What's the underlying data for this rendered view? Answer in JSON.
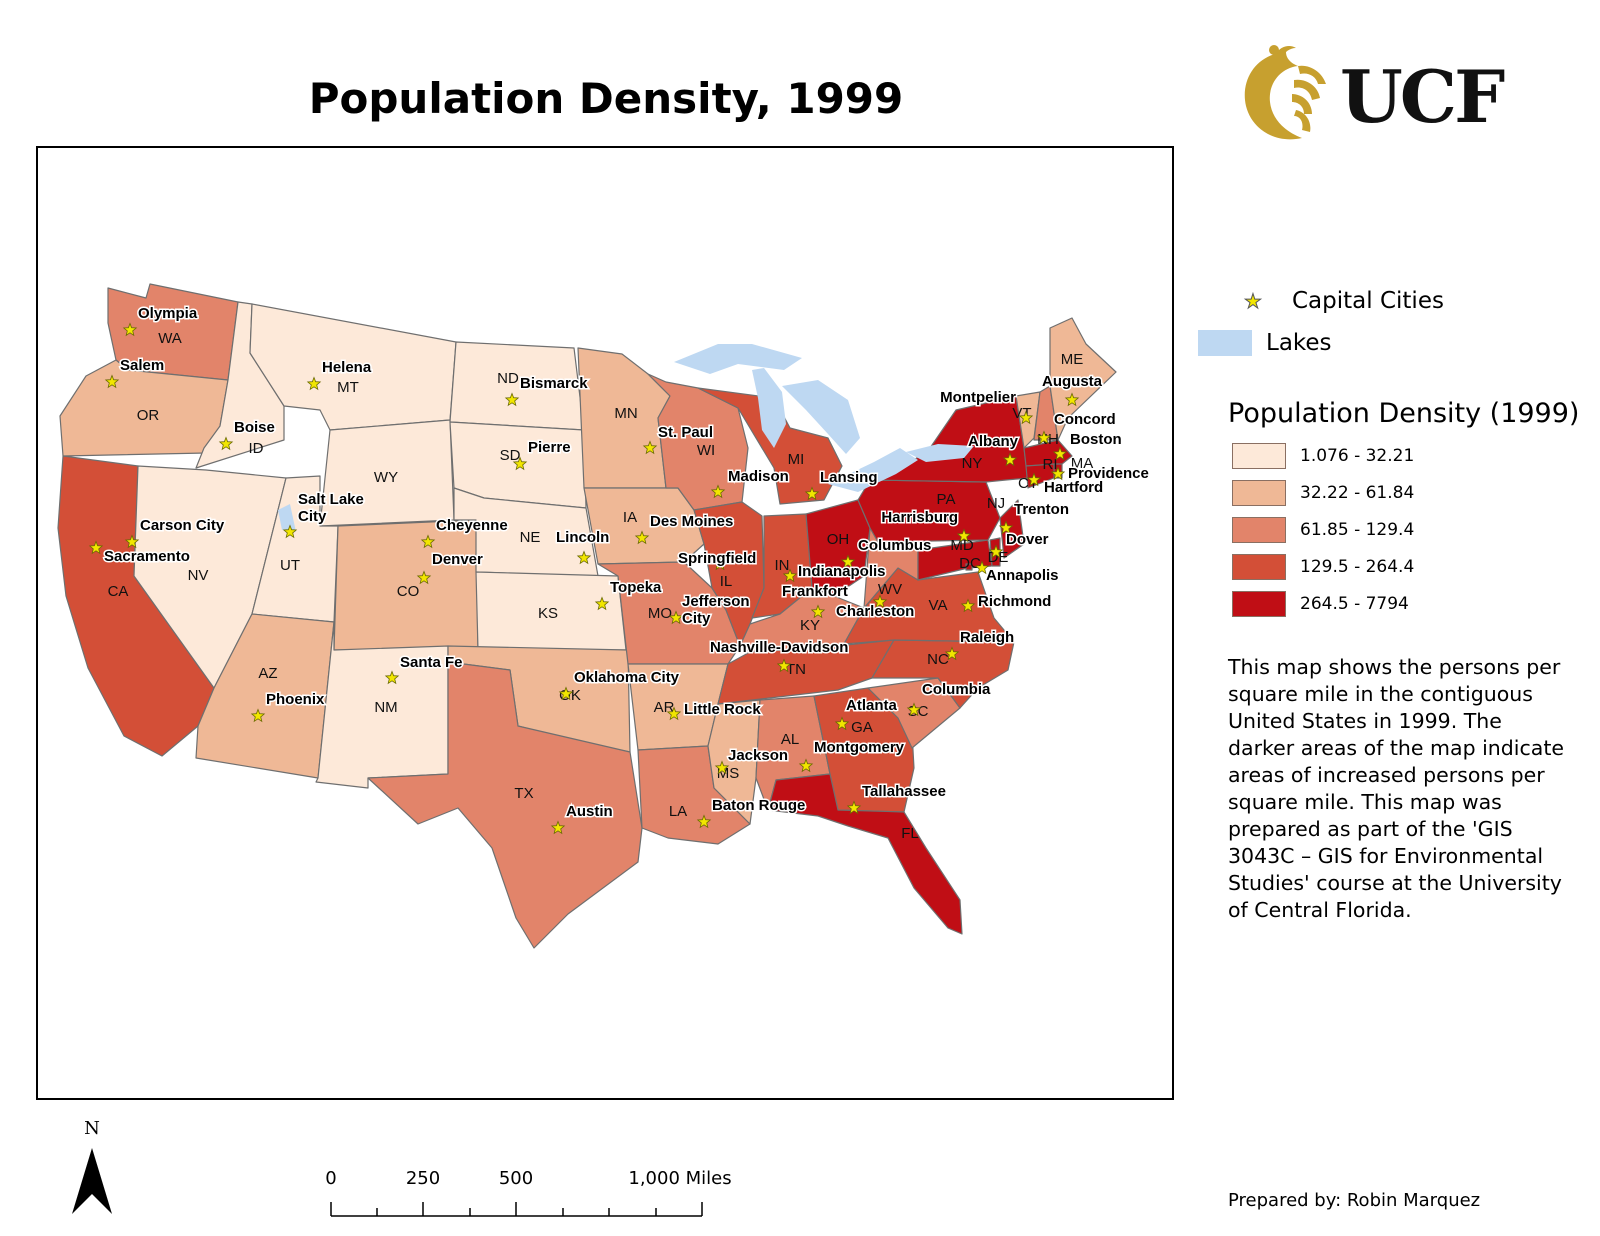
{
  "title": "Population Density, 1999",
  "logo": {
    "text": "UCF",
    "gold": "#c7a02f"
  },
  "legend": {
    "capital_label": "Capital Cities",
    "lakes_label": "Lakes",
    "density_title": "Population Density (1999)",
    "classes": [
      {
        "label": "1.076 - 32.21",
        "color": "#fde9d9"
      },
      {
        "label": "32.22 - 61.84",
        "color": "#efb896"
      },
      {
        "label": "61.85 - 129.4",
        "color": "#e2846a"
      },
      {
        "label": "129.5 - 264.4",
        "color": "#d34f37"
      },
      {
        "label": "264.5 - 7794",
        "color": "#c00e15"
      }
    ],
    "lake_color": "#bed8f2",
    "star_color": "#f2e600"
  },
  "description": "This map shows the persons per square mile in the contiguous United States in 1999. The darker areas of the map indicate areas of increased persons per square mile. This map was prepared as part of the 'GIS 3043C – GIS for Environmental Studies' course at the University of Central Florida.",
  "prepared_by": "Prepared by: Robin Marquez",
  "north_label": "N",
  "scale": {
    "labels": [
      "0",
      "250",
      "500",
      "1,000 Miles"
    ]
  },
  "map": {
    "states": [
      {
        "abbr": "WA",
        "class": 2
      },
      {
        "abbr": "OR",
        "class": 1
      },
      {
        "abbr": "CA",
        "class": 3
      },
      {
        "abbr": "ID",
        "class": 0
      },
      {
        "abbr": "NV",
        "class": 0
      },
      {
        "abbr": "MT",
        "class": 0
      },
      {
        "abbr": "WY",
        "class": 0
      },
      {
        "abbr": "UT",
        "class": 0
      },
      {
        "abbr": "AZ",
        "class": 1
      },
      {
        "abbr": "CO",
        "class": 1
      },
      {
        "abbr": "NM",
        "class": 0
      },
      {
        "abbr": "ND",
        "class": 0
      },
      {
        "abbr": "SD",
        "class": 0
      },
      {
        "abbr": "NE",
        "class": 0
      },
      {
        "abbr": "KS",
        "class": 0
      },
      {
        "abbr": "OK",
        "class": 1
      },
      {
        "abbr": "TX",
        "class": 2
      },
      {
        "abbr": "MN",
        "class": 1
      },
      {
        "abbr": "IA",
        "class": 1
      },
      {
        "abbr": "MO",
        "class": 2
      },
      {
        "abbr": "AR",
        "class": 1
      },
      {
        "abbr": "LA",
        "class": 2
      },
      {
        "abbr": "WI",
        "class": 2
      },
      {
        "abbr": "IL",
        "class": 3
      },
      {
        "abbr": "MI",
        "class": 3
      },
      {
        "abbr": "IN",
        "class": 3
      },
      {
        "abbr": "OH",
        "class": 4
      },
      {
        "abbr": "KY",
        "class": 2
      },
      {
        "abbr": "TN",
        "class": 3
      },
      {
        "abbr": "MS",
        "class": 1
      },
      {
        "abbr": "AL",
        "class": 2
      },
      {
        "abbr": "GA",
        "class": 3
      },
      {
        "abbr": "FL",
        "class": 4
      },
      {
        "abbr": "SC",
        "class": 2
      },
      {
        "abbr": "NC",
        "class": 3
      },
      {
        "abbr": "VA",
        "class": 3
      },
      {
        "abbr": "WV",
        "class": 2
      },
      {
        "abbr": "PA",
        "class": 4
      },
      {
        "abbr": "NY",
        "class": 4
      },
      {
        "abbr": "VT",
        "class": 1
      },
      {
        "abbr": "NH",
        "class": 2
      },
      {
        "abbr": "ME",
        "class": 1
      },
      {
        "abbr": "MA",
        "class": 4
      },
      {
        "abbr": "RI",
        "class": 4
      },
      {
        "abbr": "CT",
        "class": 4
      },
      {
        "abbr": "NJ",
        "class": 4
      },
      {
        "abbr": "DE",
        "class": 4
      },
      {
        "abbr": "MD",
        "class": 4
      },
      {
        "abbr": "DC",
        "class": 4
      }
    ],
    "capitals": [
      "Olympia",
      "Salem",
      "Helena",
      "Bismarck",
      "Boise",
      "Pierre",
      "St. Paul",
      "Madison",
      "Lansing",
      "Montpelier",
      "Augusta",
      "Albany",
      "Concord",
      "Boston",
      "Hartford",
      "Providence",
      "Salt Lake City",
      "Carson City",
      "Sacramento",
      "Cheyenne",
      "Lincoln",
      "Des Moines",
      "Harrisburg",
      "Trenton",
      "Springfield",
      "Columbus",
      "Dover",
      "Denver",
      "Indianapolis",
      "Annapolis",
      "Topeka",
      "Jefferson City",
      "Frankfort",
      "Charleston",
      "Richmond",
      "Nashville-Davidson",
      "Raleigh",
      "Santa Fe",
      "Oklahoma City",
      "Phoenix",
      "Little Rock",
      "Columbia",
      "Atlanta",
      "Jackson",
      "Montgomery",
      "Tallahassee",
      "Austin",
      "Baton Rouge"
    ]
  }
}
